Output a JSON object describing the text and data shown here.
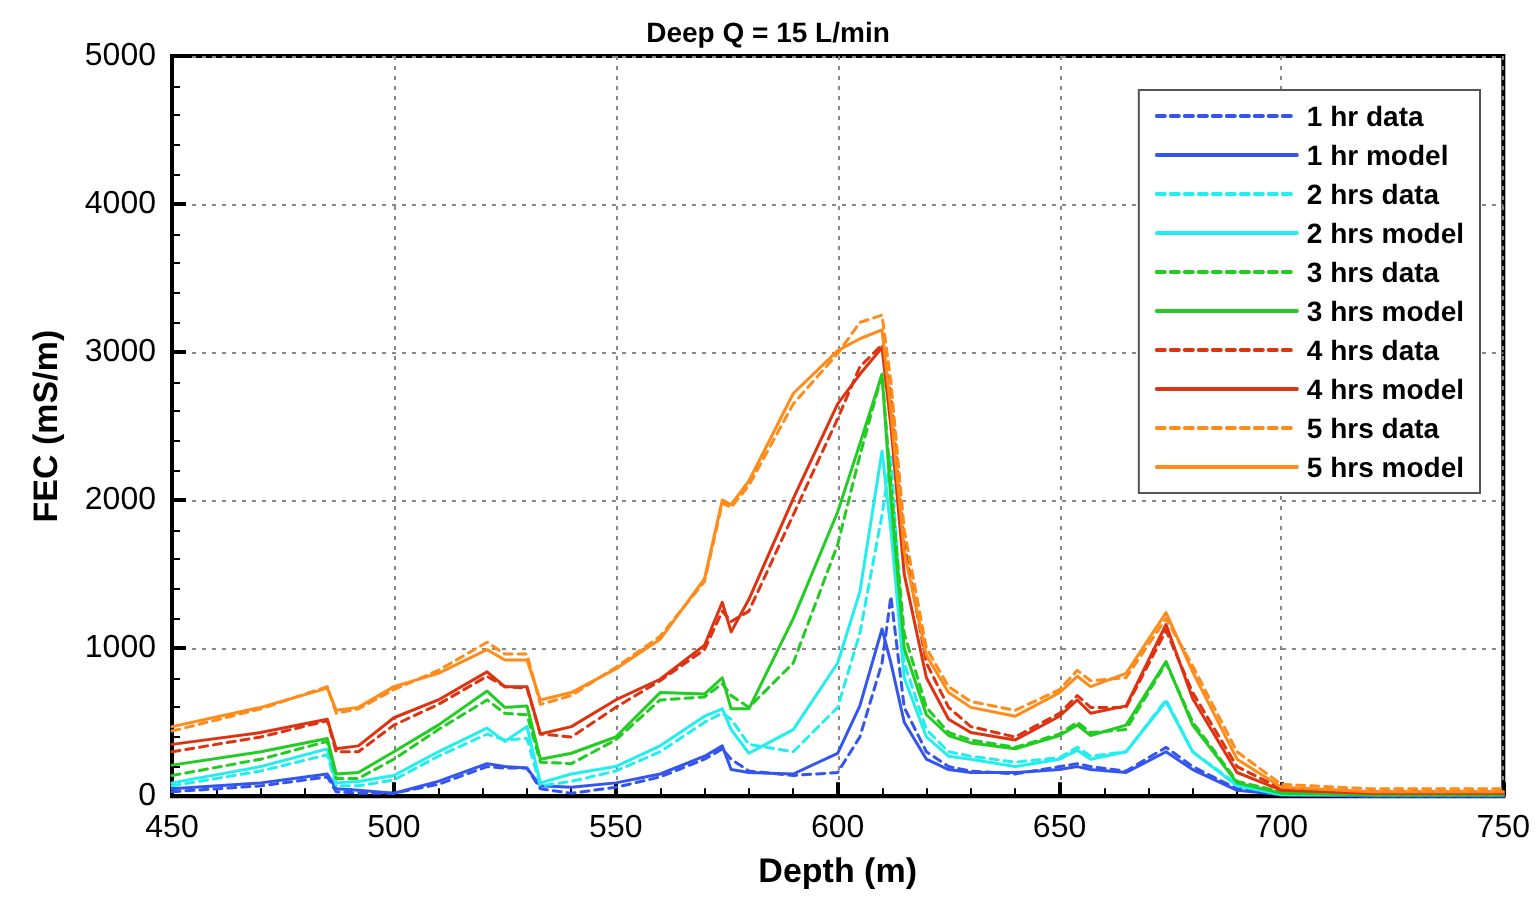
{
  "chart_data": {
    "type": "line",
    "title": "Deep Q = 15 L/min",
    "xlabel": "Depth (m)",
    "ylabel": "FEC (mS/m)",
    "x": [
      450,
      470,
      485,
      487,
      492,
      500,
      510,
      521,
      525,
      530,
      533,
      540,
      550,
      560,
      570,
      574,
      576,
      580,
      590,
      600,
      605,
      610,
      612,
      615,
      620,
      625,
      630,
      640,
      650,
      654,
      657,
      665,
      674,
      680,
      690,
      700,
      720,
      750
    ],
    "xlim": [
      450,
      750
    ],
    "xticks": [
      450,
      500,
      550,
      600,
      650,
      700,
      750
    ],
    "ylim": [
      0,
      5000
    ],
    "yticks": [
      0,
      1000,
      2000,
      3000,
      4000,
      5000
    ],
    "grid": true,
    "legend": "top right",
    "marker": "none",
    "series": [
      {
        "name": "1 hr data",
        "color": "#3355ee",
        "line_style": "dashed",
        "values": [
          30,
          70,
          130,
          30,
          20,
          20,
          80,
          200,
          190,
          190,
          50,
          20,
          60,
          130,
          250,
          320,
          250,
          170,
          140,
          160,
          400,
          900,
          1350,
          600,
          300,
          200,
          170,
          150,
          200,
          220,
          200,
          170,
          330,
          200,
          50,
          10,
          0,
          0
        ]
      },
      {
        "name": "1 hr model",
        "color": "#3355ee",
        "line_style": "solid",
        "values": [
          50,
          90,
          150,
          50,
          40,
          20,
          100,
          220,
          200,
          190,
          70,
          60,
          90,
          150,
          270,
          340,
          180,
          160,
          150,
          290,
          610,
          1130,
          900,
          500,
          250,
          180,
          160,
          160,
          180,
          200,
          180,
          160,
          300,
          180,
          40,
          10,
          0,
          0
        ]
      },
      {
        "name": "2 hrs data",
        "color": "#22eeee",
        "line_style": "dashed",
        "values": [
          70,
          170,
          280,
          70,
          70,
          110,
          270,
          420,
          380,
          390,
          70,
          100,
          170,
          300,
          500,
          560,
          520,
          350,
          300,
          600,
          1100,
          1900,
          2300,
          900,
          450,
          300,
          270,
          230,
          260,
          330,
          270,
          300,
          650,
          300,
          80,
          20,
          10,
          10
        ]
      },
      {
        "name": "2 hrs model",
        "color": "#22eeee",
        "line_style": "solid",
        "values": [
          90,
          200,
          320,
          90,
          100,
          140,
          300,
          460,
          370,
          470,
          90,
          150,
          200,
          340,
          540,
          590,
          450,
          290,
          450,
          900,
          1380,
          2330,
          1800,
          800,
          400,
          270,
          250,
          200,
          250,
          310,
          250,
          300,
          640,
          300,
          70,
          10,
          10,
          10
        ]
      },
      {
        "name": "3 hrs data",
        "color": "#22cc22",
        "line_style": "dashed",
        "values": [
          140,
          250,
          370,
          120,
          120,
          250,
          450,
          650,
          560,
          550,
          230,
          220,
          380,
          650,
          670,
          760,
          680,
          600,
          900,
          1700,
          2300,
          2850,
          2100,
          1100,
          600,
          430,
          380,
          330,
          420,
          500,
          430,
          450,
          900,
          500,
          100,
          30,
          10,
          10
        ]
      },
      {
        "name": "3 hrs model",
        "color": "#22cc22",
        "line_style": "solid",
        "values": [
          210,
          300,
          390,
          150,
          160,
          300,
          480,
          710,
          600,
          610,
          250,
          290,
          400,
          700,
          690,
          800,
          590,
          590,
          1200,
          1920,
          2380,
          2850,
          2000,
          1000,
          550,
          410,
          360,
          320,
          410,
          480,
          410,
          480,
          910,
          480,
          90,
          20,
          10,
          10
        ]
      },
      {
        "name": "4 hrs data",
        "color": "#dd3311",
        "line_style": "dashed",
        "values": [
          300,
          400,
          510,
          300,
          300,
          480,
          620,
          810,
          740,
          730,
          420,
          400,
          600,
          780,
          990,
          1250,
          1180,
          1250,
          1900,
          2550,
          2900,
          3050,
          2700,
          1700,
          900,
          600,
          470,
          400,
          560,
          680,
          600,
          600,
          1120,
          700,
          200,
          50,
          30,
          30
        ]
      },
      {
        "name": "4 hrs model",
        "color": "#dd3311",
        "line_style": "solid",
        "values": [
          350,
          430,
          520,
          320,
          340,
          530,
          650,
          840,
          740,
          740,
          420,
          470,
          650,
          790,
          1020,
          1310,
          1110,
          1330,
          2010,
          2650,
          2850,
          3030,
          2500,
          1500,
          800,
          520,
          430,
          380,
          540,
          650,
          560,
          610,
          1160,
          660,
          160,
          40,
          20,
          20
        ]
      },
      {
        "name": "5 hrs data",
        "color": "#ff8c1a",
        "line_style": "dashed",
        "values": [
          440,
          590,
          740,
          560,
          590,
          720,
          850,
          1040,
          960,
          960,
          620,
          680,
          870,
          1080,
          1450,
          1980,
          1950,
          2100,
          2650,
          2990,
          3200,
          3250,
          2800,
          1800,
          1000,
          740,
          640,
          580,
          720,
          850,
          780,
          800,
          1200,
          880,
          300,
          80,
          50,
          50
        ]
      },
      {
        "name": "5 hrs model",
        "color": "#ff8c1a",
        "line_style": "solid",
        "values": [
          470,
          600,
          730,
          580,
          600,
          740,
          830,
          990,
          920,
          920,
          650,
          700,
          860,
          1060,
          1470,
          2000,
          1970,
          2130,
          2720,
          3010,
          3090,
          3150,
          2600,
          1650,
          950,
          700,
          600,
          540,
          700,
          810,
          740,
          830,
          1240,
          840,
          250,
          60,
          30,
          30
        ]
      }
    ]
  }
}
